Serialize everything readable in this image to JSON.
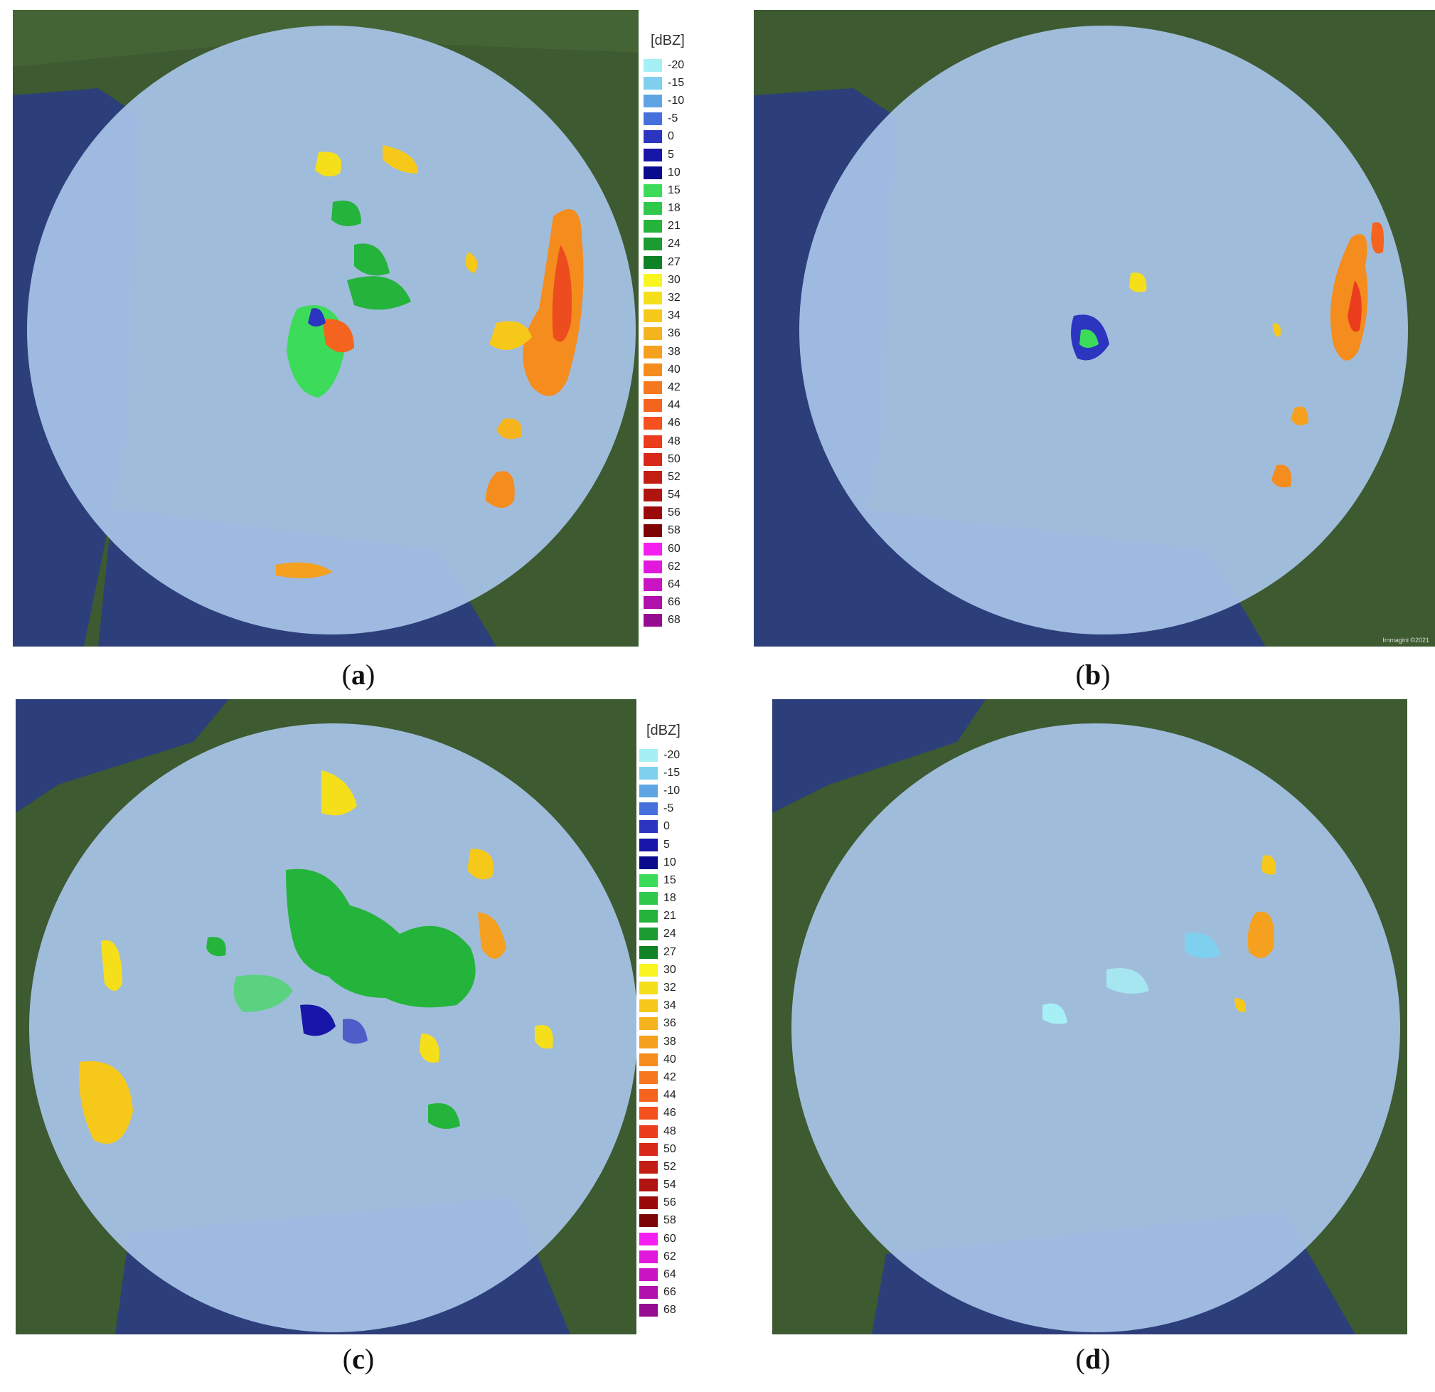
{
  "legend": {
    "unit": "[dBZ]",
    "entries": [
      {
        "label": "-20",
        "color": "#a6f0f5"
      },
      {
        "label": "-15",
        "color": "#7fd0ee"
      },
      {
        "label": "-10",
        "color": "#5fa5e4"
      },
      {
        "label": "-5",
        "color": "#4670dc"
      },
      {
        "label": "0",
        "color": "#2b35c0"
      },
      {
        "label": "5",
        "color": "#1816a8"
      },
      {
        "label": "10",
        "color": "#0a0a8c"
      },
      {
        "label": "15",
        "color": "#3cdc5a"
      },
      {
        "label": "18",
        "color": "#2fc84b"
      },
      {
        "label": "21",
        "color": "#24b43c"
      },
      {
        "label": "24",
        "color": "#1a9c30"
      },
      {
        "label": "27",
        "color": "#0f8226"
      },
      {
        "label": "30",
        "color": "#f8f520"
      },
      {
        "label": "32",
        "color": "#f5df1a"
      },
      {
        "label": "34",
        "color": "#f5c81a"
      },
      {
        "label": "36",
        "color": "#f5b41e"
      },
      {
        "label": "38",
        "color": "#f5a01e"
      },
      {
        "label": "40",
        "color": "#f58c1e"
      },
      {
        "label": "42",
        "color": "#f5781e"
      },
      {
        "label": "44",
        "color": "#f5641e"
      },
      {
        "label": "46",
        "color": "#f5501e"
      },
      {
        "label": "48",
        "color": "#eb3c1e"
      },
      {
        "label": "50",
        "color": "#d72819"
      },
      {
        "label": "52",
        "color": "#c31e14"
      },
      {
        "label": "54",
        "color": "#af1410"
      },
      {
        "label": "56",
        "color": "#9b0a0a"
      },
      {
        "label": "58",
        "color": "#7d0505"
      },
      {
        "label": "60",
        "color": "#f51ef0"
      },
      {
        "label": "62",
        "color": "#e119dc"
      },
      {
        "label": "64",
        "color": "#c814c3"
      },
      {
        "label": "66",
        "color": "#b010ab"
      },
      {
        "label": "68",
        "color": "#960c91"
      }
    ]
  },
  "panels": [
    {
      "id": "a",
      "caption_open": "(",
      "caption_letter": "a",
      "caption_close": ")"
    },
    {
      "id": "b",
      "caption_open": "(",
      "caption_letter": "b",
      "caption_close": ")",
      "attribution": "Immagini ©2021"
    },
    {
      "id": "c",
      "caption_open": "(",
      "caption_letter": "c",
      "caption_close": ")"
    },
    {
      "id": "d",
      "caption_open": "(",
      "caption_letter": "d",
      "caption_close": ")"
    }
  ],
  "colors": {
    "land": "#3d5a30",
    "sea": "#2c3f7a",
    "radar_disk": "#a8c4e8"
  }
}
